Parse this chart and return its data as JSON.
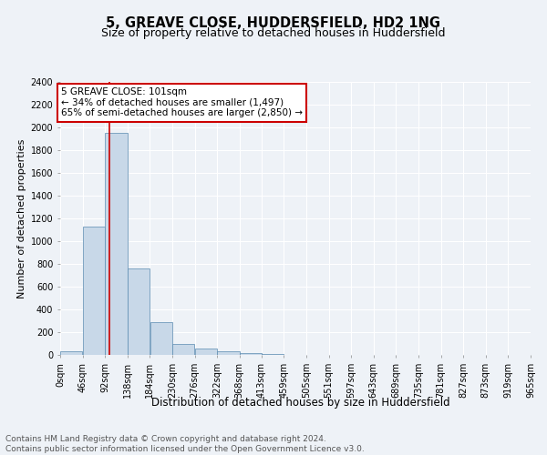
{
  "title": "5, GREAVE CLOSE, HUDDERSFIELD, HD2 1NG",
  "subtitle": "Size of property relative to detached houses in Huddersfield",
  "xlabel": "Distribution of detached houses by size in Huddersfield",
  "ylabel": "Number of detached properties",
  "footer_line1": "Contains HM Land Registry data © Crown copyright and database right 2024.",
  "footer_line2": "Contains public sector information licensed under the Open Government Licence v3.0.",
  "bin_edges": [
    0,
    46,
    92,
    138,
    184,
    230,
    276,
    322,
    368,
    413,
    459,
    505,
    551,
    597,
    643,
    689,
    735,
    781,
    827,
    873,
    919
  ],
  "bar_heights": [
    30,
    1130,
    1950,
    760,
    290,
    100,
    55,
    30,
    15,
    5,
    3,
    2,
    1,
    1,
    0,
    0,
    0,
    0,
    0,
    0
  ],
  "bar_color": "#c8d8e8",
  "bar_edge_color": "#5a8ab0",
  "property_size": 101,
  "red_line_color": "#cc0000",
  "annotation_text_line1": "5 GREAVE CLOSE: 101sqm",
  "annotation_text_line2": "← 34% of detached houses are smaller (1,497)",
  "annotation_text_line3": "65% of semi-detached houses are larger (2,850) →",
  "annotation_box_color": "#cc0000",
  "ylim": [
    0,
    2400
  ],
  "yticks": [
    0,
    200,
    400,
    600,
    800,
    1000,
    1200,
    1400,
    1600,
    1800,
    2000,
    2200,
    2400
  ],
  "bg_color": "#eef2f7",
  "plot_bg_color": "#eef2f7",
  "grid_color": "#ffffff",
  "title_fontsize": 10.5,
  "subtitle_fontsize": 9,
  "xlabel_fontsize": 8.5,
  "ylabel_fontsize": 8,
  "tick_fontsize": 7,
  "footer_fontsize": 6.5,
  "ann_fontsize": 7.5
}
